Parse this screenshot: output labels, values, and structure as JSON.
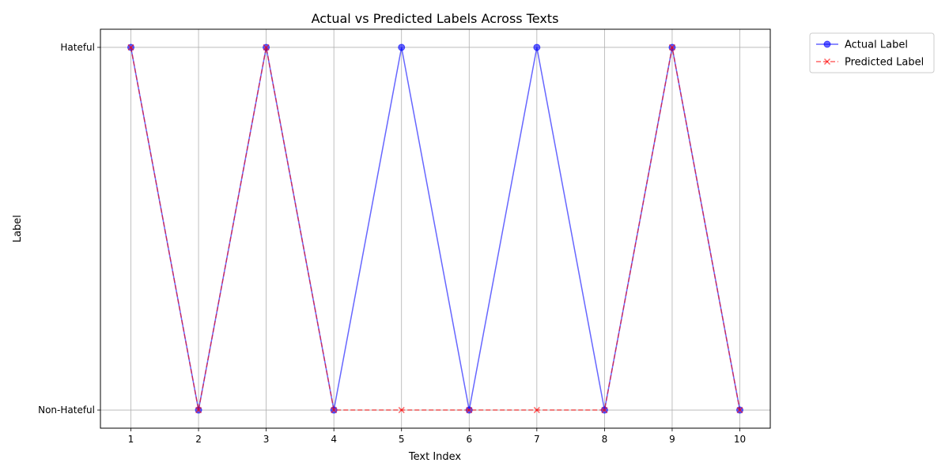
{
  "chart_data": {
    "type": "line",
    "title": "Actual vs Predicted Labels Across Texts",
    "xlabel": "Text Index",
    "ylabel": "Label",
    "x": [
      1,
      2,
      3,
      4,
      5,
      6,
      7,
      8,
      9,
      10
    ],
    "xlim": [
      0.55,
      10.45
    ],
    "y_categories": [
      "Non-Hateful",
      "Hateful"
    ],
    "ylim": [
      -0.05,
      1.05
    ],
    "grid": true,
    "legend_position": "upper-right-outside",
    "series": [
      {
        "name": "Actual Label",
        "values": [
          1,
          0,
          1,
          0,
          1,
          0,
          1,
          0,
          1,
          0
        ],
        "color": "#0000ff",
        "line_style": "solid",
        "marker": "circle"
      },
      {
        "name": "Predicted Label",
        "values": [
          1,
          0,
          1,
          0,
          0,
          0,
          0,
          0,
          1,
          0
        ],
        "color": "#ff0000",
        "line_style": "dashed",
        "marker": "x"
      }
    ]
  }
}
